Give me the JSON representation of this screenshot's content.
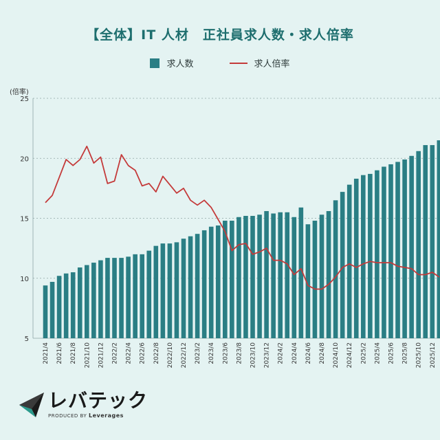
{
  "title": "【全体】IT 人材　正社員求人数・求人倍率",
  "legend": {
    "bar_label": "求人数",
    "line_label": "求人倍率"
  },
  "y_unit": "(倍率)",
  "logo": {
    "main": "レバテック",
    "sub_prefix": "PRODUCED BY",
    "sub_brand": "Leverages"
  },
  "colors": {
    "bar": "#2a7e84",
    "line": "#c43a3a",
    "background": "#e4f3f2",
    "title": "#1d6e6e"
  },
  "chart_data": {
    "type": "bar+line",
    "title": "【全体】IT 人材　正社員求人数・求人倍率",
    "ylabel": "(倍率)",
    "ylim": [
      5,
      25
    ],
    "yticks": [
      5,
      10,
      15,
      20,
      25
    ],
    "grid": "horizontal dashed",
    "legend_position": "top-center",
    "categories": [
      "2021/4",
      "2021/5",
      "2021/6",
      "2021/7",
      "2021/8",
      "2021/9",
      "2021/10",
      "2021/11",
      "2021/12",
      "2022/1",
      "2022/2",
      "2022/3",
      "2022/4",
      "2022/5",
      "2022/6",
      "2022/7",
      "2022/8",
      "2022/9",
      "2022/10",
      "2022/11",
      "2022/12",
      "2023/1",
      "2023/2",
      "2023/3",
      "2023/4",
      "2023/5",
      "2023/6",
      "2023/7",
      "2023/8",
      "2023/9",
      "2023/10",
      "2023/11",
      "2023/12",
      "2024/1",
      "2024/2",
      "2024/3",
      "2024/4",
      "2024/5",
      "2024/6",
      "2024/7",
      "2024/8",
      "2024/9",
      "2024/10",
      "2024/11",
      "2024/12",
      "2025/1",
      "2025/2",
      "2025/3",
      "2025/4",
      "2025/5",
      "2025/6",
      "2025/7",
      "2025/8",
      "2025/9",
      "2025/10",
      "2025/11",
      "2025/12",
      "2026/1"
    ],
    "xtick_labels": [
      "2021/4",
      "2021/6",
      "2021/8",
      "2021/10",
      "2021/12",
      "2022/2",
      "2022/4",
      "2022/6",
      "2022/8",
      "2022/10",
      "2022/12",
      "2023/2",
      "2023/4",
      "2023/6",
      "2023/8",
      "2023/10",
      "2023/12",
      "2024/2",
      "2024/4",
      "2024/6",
      "2024/8",
      "2024/10",
      "2024/12",
      "2025/2",
      "2025/4",
      "2025/6",
      "2025/8",
      "2025/10",
      "2025/12"
    ],
    "series": [
      {
        "name": "求人数",
        "type": "bar",
        "values": [
          9.4,
          9.7,
          10.2,
          10.4,
          10.5,
          10.9,
          11.1,
          11.3,
          11.5,
          11.7,
          11.7,
          11.7,
          11.8,
          12.0,
          12.0,
          12.3,
          12.7,
          12.9,
          12.9,
          13.0,
          13.3,
          13.5,
          13.7,
          14.0,
          14.3,
          14.4,
          14.8,
          14.8,
          15.1,
          15.2,
          15.2,
          15.3,
          15.6,
          15.4,
          15.5,
          15.5,
          15.1,
          15.9,
          14.5,
          14.8,
          15.3,
          15.6,
          16.5,
          17.2,
          17.8,
          18.3,
          18.6,
          18.7,
          19.0,
          19.3,
          19.5,
          19.7,
          19.9,
          20.2,
          20.6,
          21.1,
          21.1,
          21.5
        ]
      },
      {
        "name": "求人倍率",
        "type": "line",
        "values": [
          16.3,
          16.9,
          18.4,
          19.9,
          19.4,
          19.9,
          21.0,
          19.6,
          20.1,
          17.9,
          18.1,
          20.3,
          19.4,
          19.0,
          17.7,
          17.9,
          17.2,
          18.5,
          17.8,
          17.1,
          17.5,
          16.5,
          16.1,
          16.5,
          15.9,
          14.9,
          13.9,
          12.3,
          12.8,
          12.9,
          12.0,
          12.2,
          12.5,
          11.5,
          11.5,
          11.2,
          10.3,
          10.8,
          9.4,
          9.1,
          9.1,
          9.5,
          10.1,
          10.9,
          11.2,
          10.9,
          11.2,
          11.4,
          11.3,
          11.3,
          11.3,
          11.0,
          10.9,
          10.8,
          10.3,
          10.3,
          10.5,
          10.1
        ]
      }
    ]
  }
}
